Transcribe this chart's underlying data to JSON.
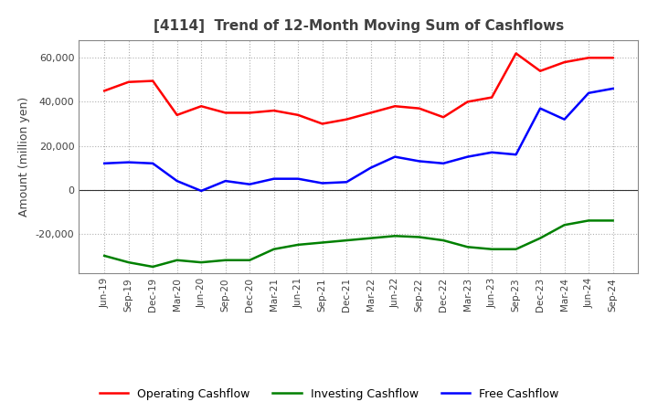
{
  "title": "[4114]  Trend of 12-Month Moving Sum of Cashflows",
  "ylabel": "Amount (million yen)",
  "x_labels": [
    "Jun-19",
    "Sep-19",
    "Dec-19",
    "Mar-20",
    "Jun-20",
    "Sep-20",
    "Dec-20",
    "Mar-21",
    "Jun-21",
    "Sep-21",
    "Dec-21",
    "Mar-22",
    "Jun-22",
    "Sep-22",
    "Dec-22",
    "Mar-23",
    "Jun-23",
    "Sep-23",
    "Dec-23",
    "Mar-24",
    "Jun-24",
    "Sep-24"
  ],
  "operating": [
    45000,
    49000,
    49500,
    34000,
    38000,
    35000,
    35000,
    36000,
    34000,
    30000,
    32000,
    35000,
    38000,
    37000,
    33000,
    40000,
    42000,
    62000,
    54000,
    58000,
    60000,
    60000
  ],
  "investing": [
    -30000,
    -33000,
    -35000,
    -32000,
    -33000,
    -32000,
    -32000,
    -27000,
    -25000,
    -24000,
    -23000,
    -22000,
    -21000,
    -21500,
    -23000,
    -26000,
    -27000,
    -27000,
    -22000,
    -16000,
    -14000,
    -14000
  ],
  "free": [
    12000,
    12500,
    12000,
    4000,
    -500,
    4000,
    2500,
    5000,
    5000,
    3000,
    3500,
    10000,
    15000,
    13000,
    12000,
    15000,
    17000,
    16000,
    37000,
    32000,
    44000,
    46000
  ],
  "operating_color": "#ff0000",
  "investing_color": "#008000",
  "free_color": "#0000ff",
  "ylim_min": -38000,
  "ylim_max": 68000,
  "yticks": [
    -20000,
    0,
    20000,
    40000,
    60000
  ],
  "background_color": "#ffffff",
  "plot_bg_color": "#ffffff",
  "grid_color": "#b0b0b0",
  "linewidth": 1.8,
  "title_color": "#404040",
  "tick_label_color": "#404040"
}
